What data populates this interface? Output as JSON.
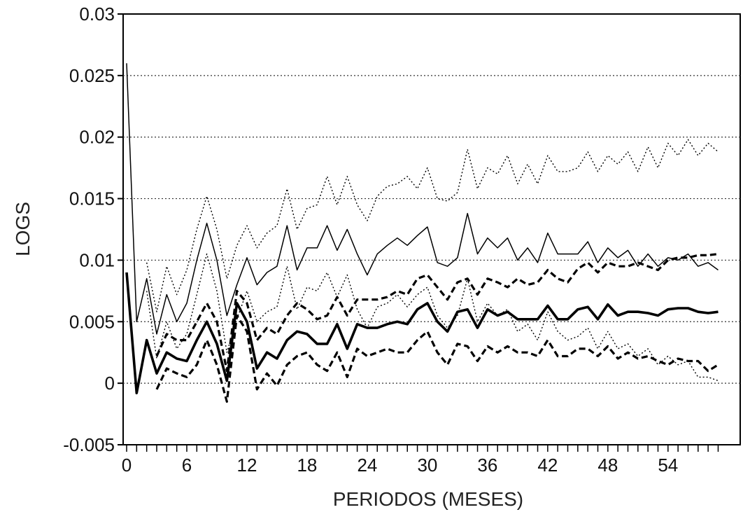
{
  "chart_data": {
    "type": "line",
    "xlabel": "PERIODOS (MESES)",
    "ylabel": "LOGS",
    "xlim": [
      0,
      59
    ],
    "ylim": [
      -0.005,
      0.03
    ],
    "xticks": [
      0,
      6,
      12,
      18,
      24,
      30,
      36,
      42,
      48,
      54
    ],
    "xtick_labels": [
      "0",
      "6",
      "12",
      "18",
      "24",
      "30",
      "36",
      "42",
      "48",
      "54"
    ],
    "yticks": [
      -0.005,
      0,
      0.005,
      0.01,
      0.015,
      0.02,
      0.025,
      0.03
    ],
    "ytick_labels": [
      "-0.005",
      "0",
      "0.005",
      "0.01",
      "0.015",
      "0.02",
      "0.025",
      "0.03"
    ],
    "grid": "horizontal dotted",
    "x": [
      0,
      1,
      2,
      3,
      4,
      5,
      6,
      7,
      8,
      9,
      10,
      11,
      12,
      13,
      14,
      15,
      16,
      17,
      18,
      19,
      20,
      21,
      22,
      23,
      24,
      25,
      26,
      27,
      28,
      29,
      30,
      31,
      32,
      33,
      34,
      35,
      36,
      37,
      38,
      39,
      40,
      41,
      42,
      43,
      44,
      45,
      46,
      47,
      48,
      49,
      50,
      51,
      52,
      53,
      54,
      55,
      56,
      57,
      58,
      59
    ],
    "series": [
      {
        "style": "thick-solid",
        "values": [
          0.009,
          -0.0008,
          0.0035,
          0.0008,
          0.0025,
          0.002,
          0.0018,
          0.0035,
          0.005,
          0.0032,
          0.0002,
          0.0065,
          0.005,
          0.0012,
          0.0025,
          0.002,
          0.0035,
          0.0042,
          0.004,
          0.0032,
          0.0032,
          0.0048,
          0.0028,
          0.0048,
          0.0045,
          0.0045,
          0.0048,
          0.005,
          0.0048,
          0.006,
          0.0065,
          0.005,
          0.0042,
          0.0058,
          0.006,
          0.0045,
          0.006,
          0.0055,
          0.0058,
          0.0052,
          0.0052,
          0.0052,
          0.0063,
          0.0052,
          0.0052,
          0.006,
          0.0062,
          0.0052,
          0.0064,
          0.0055,
          0.0058,
          0.0058,
          0.0057,
          0.0055,
          0.006,
          0.0061,
          0.0061,
          0.0058,
          0.0057,
          0.0058
        ]
      },
      {
        "style": "thick-dashed",
        "values": [
          null,
          null,
          null,
          0.0022,
          0.004,
          0.0035,
          0.0035,
          0.005,
          0.0065,
          0.005,
          0.001,
          0.0075,
          0.0065,
          0.0035,
          0.0045,
          0.004,
          0.0055,
          0.0065,
          0.006,
          0.0052,
          0.0055,
          0.007,
          0.0055,
          0.0068,
          0.0068,
          0.0068,
          0.007,
          0.0075,
          0.0072,
          0.0085,
          0.0088,
          0.0078,
          0.0068,
          0.0082,
          0.0085,
          0.0072,
          0.0085,
          0.0082,
          0.0078,
          0.0085,
          0.008,
          0.0082,
          0.0092,
          0.0085,
          0.0082,
          0.0093,
          0.0098,
          0.009,
          0.0098,
          0.0095,
          0.0095,
          0.0098,
          0.0095,
          0.0092,
          0.01,
          0.0102,
          0.0102,
          0.0104,
          0.0104,
          0.0105
        ]
      },
      {
        "style": "thick-dashed",
        "values": [
          null,
          null,
          null,
          -0.0005,
          0.0012,
          0.0008,
          0.0005,
          0.0015,
          0.0035,
          0.0015,
          -0.0015,
          0.0055,
          0.0042,
          -0.0005,
          0.0008,
          -0.0002,
          0.0015,
          0.0022,
          0.0025,
          0.0015,
          0.001,
          0.0025,
          0.0005,
          0.0028,
          0.0022,
          0.0025,
          0.0028,
          0.0025,
          0.0025,
          0.0035,
          0.0042,
          0.0025,
          0.0015,
          0.0032,
          0.003,
          0.0018,
          0.003,
          0.0025,
          0.003,
          0.0025,
          0.0025,
          0.0022,
          0.0035,
          0.0022,
          0.0022,
          0.0028,
          0.0028,
          0.0022,
          0.003,
          0.002,
          0.0025,
          0.002,
          0.0022,
          0.0018,
          0.0015,
          0.002,
          0.0018,
          0.0018,
          0.001,
          0.0015
        ]
      },
      {
        "style": "thin-solid",
        "values": [
          0.026,
          0.005,
          0.0085,
          0.004,
          0.0072,
          0.005,
          0.0065,
          0.01,
          0.013,
          0.01,
          0.0055,
          0.008,
          0.0102,
          0.008,
          0.009,
          0.0095,
          0.0128,
          0.0092,
          0.011,
          0.011,
          0.0128,
          0.0108,
          0.0125,
          0.0105,
          0.0088,
          0.0105,
          0.0112,
          0.0118,
          0.0112,
          0.012,
          0.0127,
          0.0098,
          0.0095,
          0.0102,
          0.0138,
          0.0105,
          0.0118,
          0.011,
          0.0118,
          0.01,
          0.011,
          0.0098,
          0.0122,
          0.0105,
          0.0105,
          0.0105,
          0.0115,
          0.0098,
          0.011,
          0.0102,
          0.0108,
          0.0095,
          0.0105,
          0.0095,
          0.0102,
          0.01,
          0.0105,
          0.0095,
          0.0098,
          0.0092
        ]
      },
      {
        "style": "thin-dotted",
        "values": [
          null,
          null,
          0.0098,
          0.0058,
          0.0095,
          0.0072,
          0.0092,
          0.0125,
          0.0152,
          0.0125,
          0.0085,
          0.0112,
          0.0128,
          0.011,
          0.0122,
          0.0128,
          0.0158,
          0.0125,
          0.0142,
          0.0145,
          0.0168,
          0.0145,
          0.0168,
          0.0145,
          0.0132,
          0.0152,
          0.016,
          0.0162,
          0.0168,
          0.0158,
          0.0175,
          0.015,
          0.0148,
          0.0155,
          0.019,
          0.0158,
          0.0175,
          0.017,
          0.0185,
          0.0162,
          0.0178,
          0.0162,
          0.0185,
          0.0172,
          0.0172,
          0.0175,
          0.0188,
          0.0172,
          0.0185,
          0.0178,
          0.0188,
          0.0172,
          0.0192,
          0.0175,
          0.0195,
          0.0185,
          0.0198,
          0.0185,
          0.0195,
          0.0188
        ]
      },
      {
        "style": "thin-dotted",
        "values": [
          null,
          null,
          0.0075,
          0.002,
          0.005,
          0.0028,
          0.004,
          0.0072,
          0.0105,
          0.0075,
          0.0025,
          0.0052,
          0.0075,
          0.005,
          0.0058,
          0.0062,
          0.0095,
          0.006,
          0.0078,
          0.0075,
          0.009,
          0.007,
          0.0088,
          0.006,
          0.0045,
          0.0062,
          0.0065,
          0.0072,
          0.0062,
          0.0072,
          0.0078,
          0.0055,
          0.0045,
          0.0055,
          0.0085,
          0.005,
          0.0065,
          0.0055,
          0.006,
          0.0042,
          0.0048,
          0.0035,
          0.0058,
          0.0042,
          0.0035,
          0.0038,
          0.0045,
          0.0028,
          0.0042,
          0.0028,
          0.0032,
          0.0022,
          0.0028,
          0.0015,
          0.0022,
          0.0015,
          0.0018,
          0.0005,
          0.0005,
          0.0002
        ]
      }
    ]
  }
}
